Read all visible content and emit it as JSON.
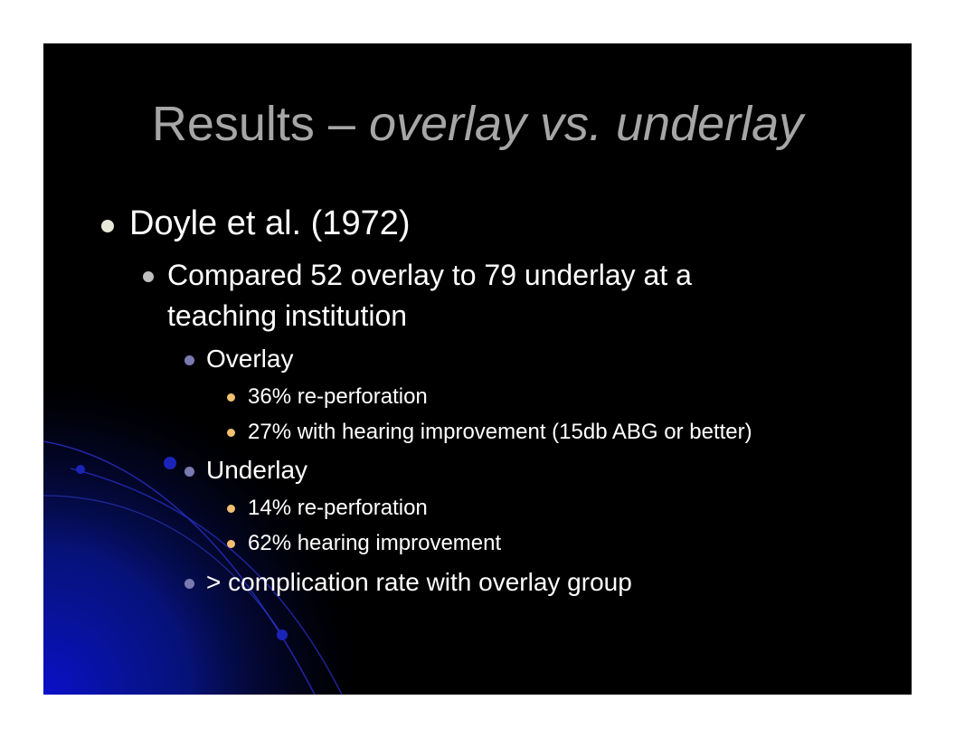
{
  "slide": {
    "title_main": "Results – ",
    "title_italic": "overlay vs. underlay",
    "bullets": {
      "level1": "Doyle et al. (1972)",
      "level2_line1": "Compared 52 overlay to 79 underlay at a",
      "level2_line2": "teaching institution",
      "overlay": "Overlay",
      "overlay_items": [
        "36% re-perforation",
        "27% with hearing improvement (15db ABG or better)"
      ],
      "underlay": "Underlay",
      "underlay_items": [
        "14% re-perforation",
        "62% hearing improvement"
      ],
      "complication": "> complication rate with overlay group"
    },
    "colors": {
      "background": "#000000",
      "title": "#a6a6a6",
      "text": "#ffffff",
      "bullet_l1": "#e8e8d8",
      "bullet_l2": "#bfbfbf",
      "bullet_l3": "#7a7ab0",
      "bullet_l4": "#f2c070",
      "accent_blue": "#0a10c8"
    }
  }
}
